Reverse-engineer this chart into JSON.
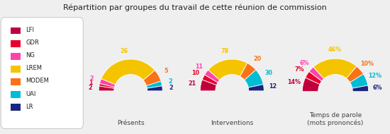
{
  "title": "Répartition par groupes du travail de cette réunion de commission",
  "groups": [
    "LFI",
    "GDR",
    "NG",
    "LREM",
    "MODEM",
    "UAI",
    "LR"
  ],
  "colors": [
    "#c0003c",
    "#e8002d",
    "#ff44aa",
    "#f5c400",
    "#f97316",
    "#00bcd4",
    "#1a237e"
  ],
  "presents": [
    2,
    1,
    2,
    26,
    5,
    2,
    2
  ],
  "interventions": [
    21,
    10,
    11,
    78,
    20,
    30,
    12
  ],
  "temps_parole_pct": [
    14,
    7,
    6,
    46,
    10,
    12,
    6
  ],
  "presents_labels": [
    "2",
    "1",
    "2",
    "26",
    "5",
    "2",
    "2"
  ],
  "interventions_labels": [
    "21",
    "10",
    "11",
    "78",
    "20",
    "30",
    "12"
  ],
  "temps_labels": [
    "14%",
    "7%",
    "6%",
    "46%",
    "10%",
    "12%",
    "6%"
  ],
  "chart_titles": [
    "Présents",
    "Interventions",
    "Temps de parole\n(mots prononcés)"
  ],
  "background_color": "#efefef",
  "legend_bg": "#ffffff"
}
